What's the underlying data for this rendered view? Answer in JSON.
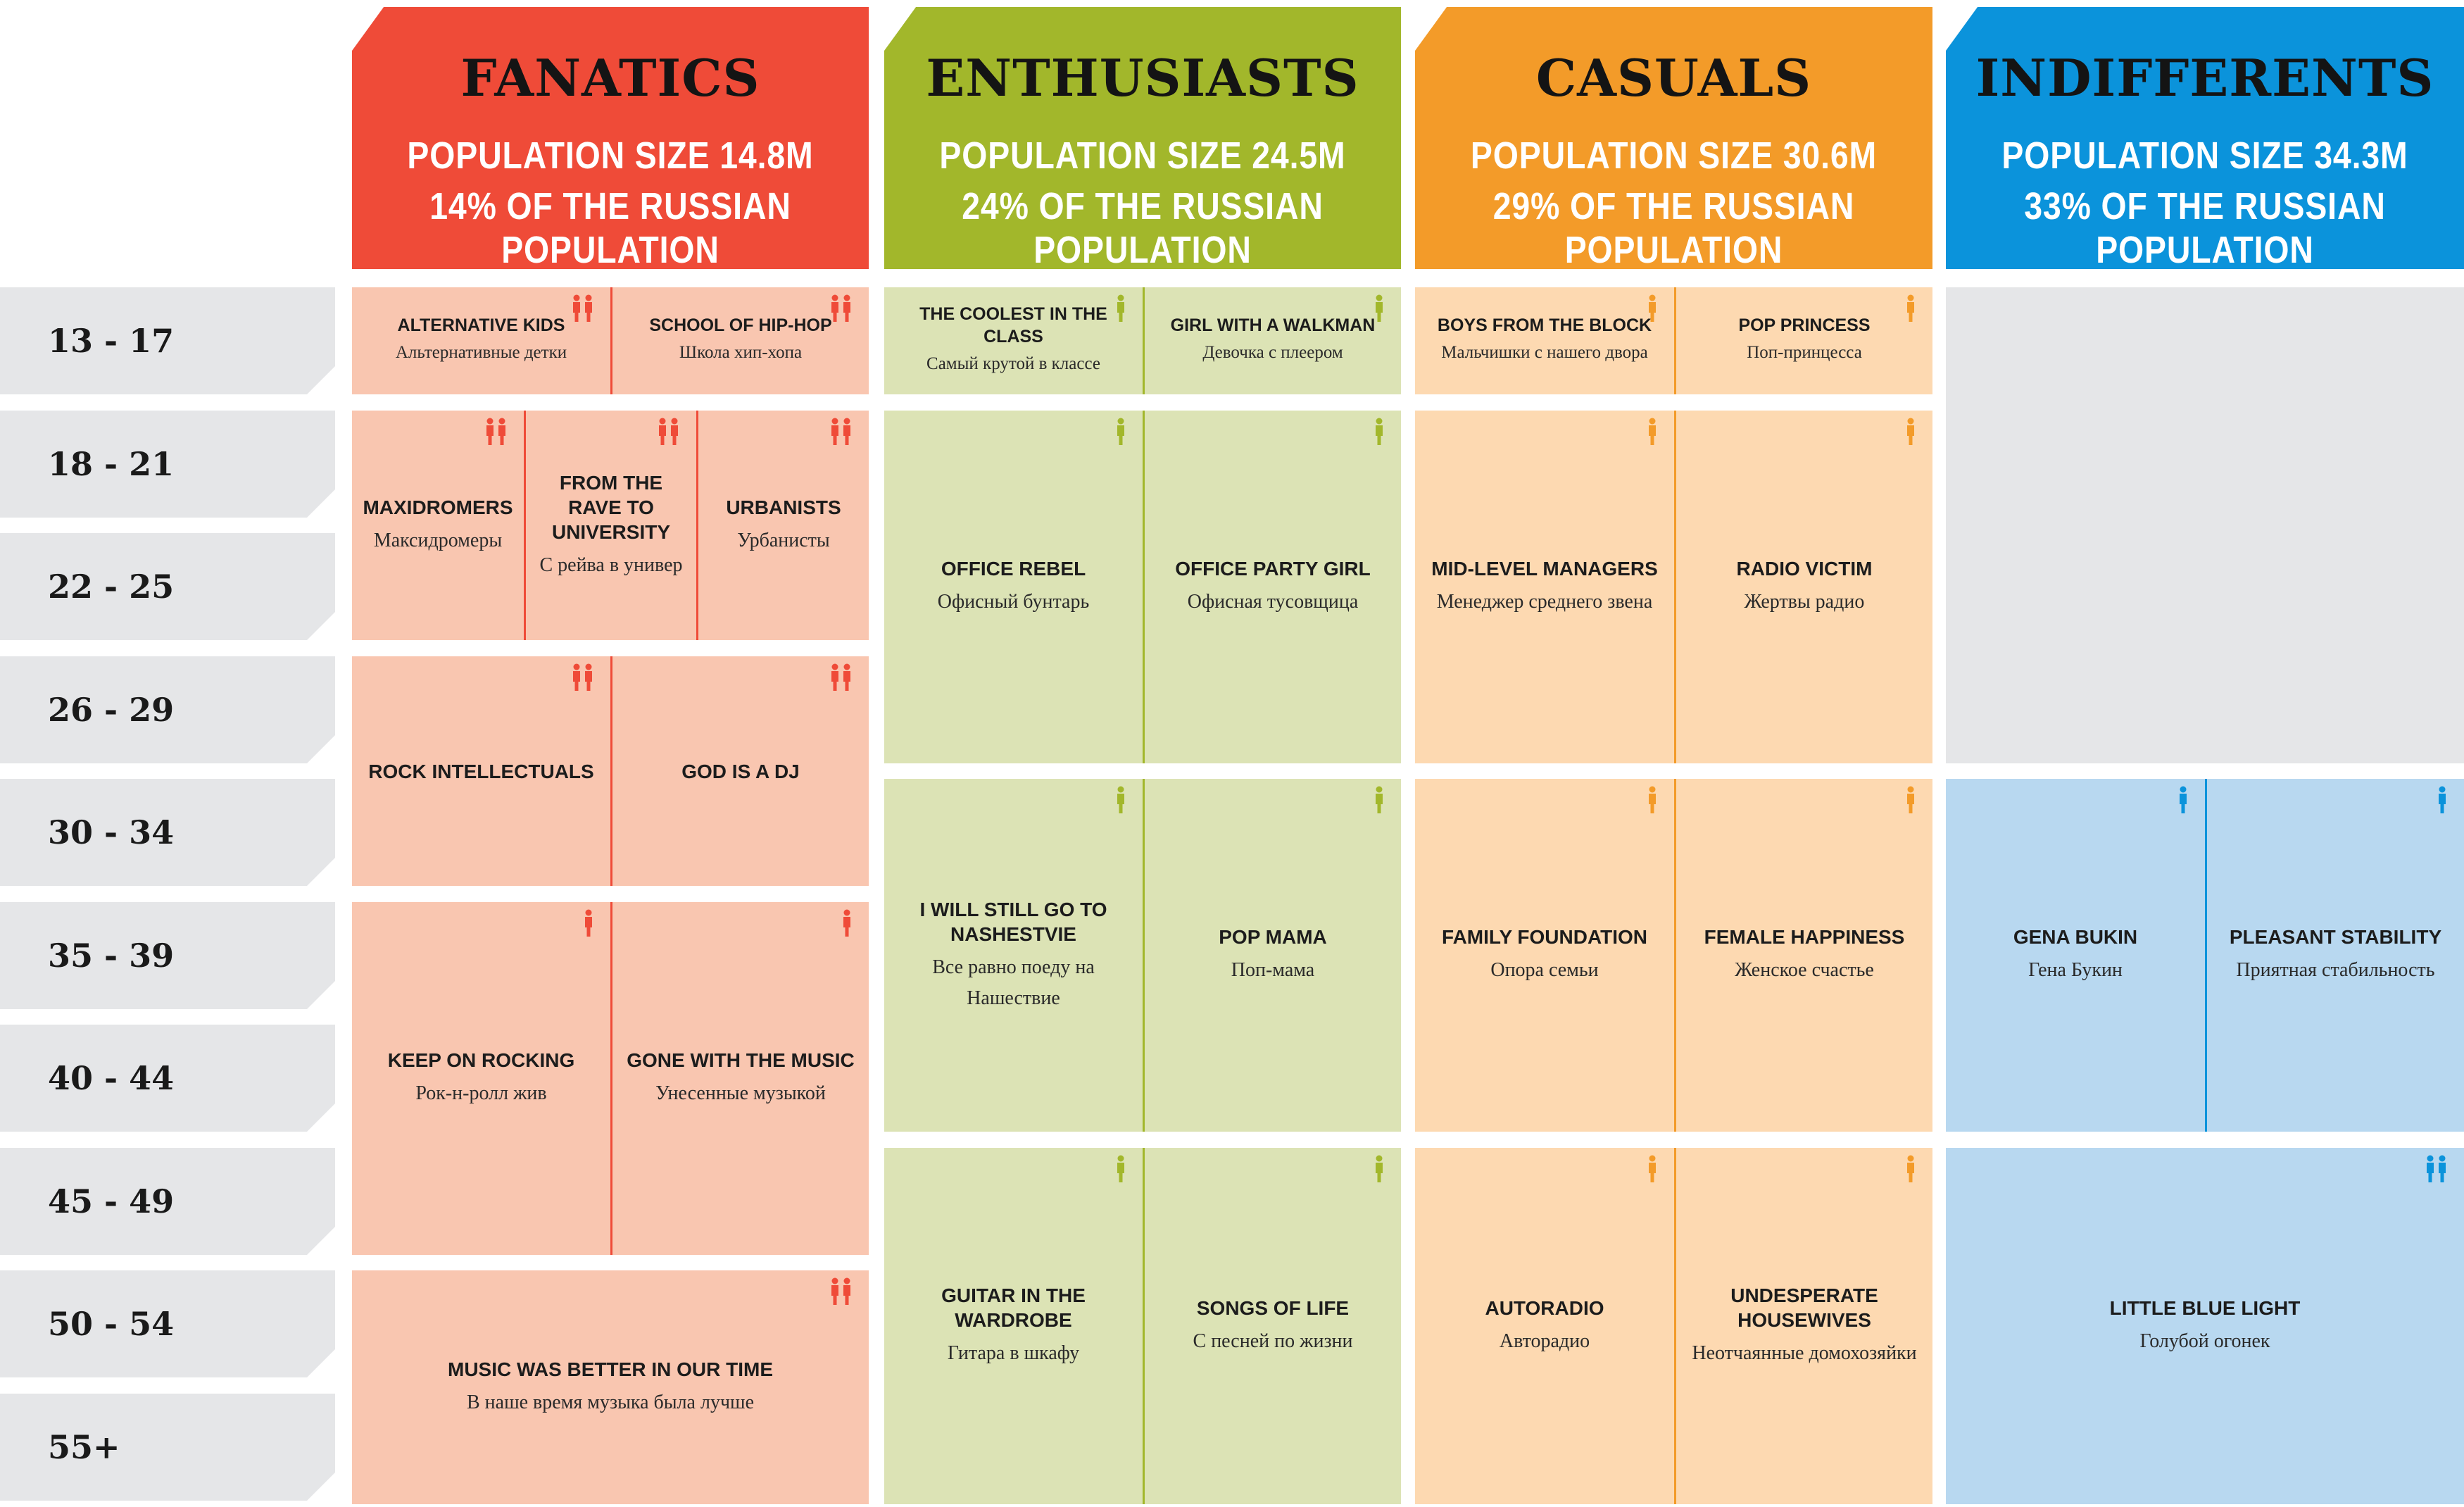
{
  "colors": {
    "fanatics": "#ef4b38",
    "enthusiasts": "#a2b72b",
    "casuals": "#f39b29",
    "indifferents": "#0b93db"
  },
  "segments": [
    {
      "key": "fanatics",
      "name": "FANATICS",
      "line1": "POPULATION SIZE 14.8M",
      "line2": "14% OF THE RUSSIAN POPULATION"
    },
    {
      "key": "enthusiasts",
      "name": "ENTHUSIASTS",
      "line1": "POPULATION SIZE 24.5M",
      "line2": "24% OF THE RUSSIAN POPULATION"
    },
    {
      "key": "casuals",
      "name": "CASUALS",
      "line1": "POPULATION SIZE 30.6M",
      "line2": "29% OF THE RUSSIAN POPULATION"
    },
    {
      "key": "indifferents",
      "name": "INDIFFERENTS",
      "line1": "POPULATION SIZE 34.3M",
      "line2": "33% OF THE RUSSIAN POPULATION"
    }
  ],
  "age_groups": [
    "13 - 17",
    "18 - 21",
    "22 - 25",
    "26 - 29",
    "30 - 34",
    "35 - 39",
    "40 - 44",
    "45 - 49",
    "50 - 54",
    "55+"
  ],
  "groups": [
    {
      "segment": "fanatics",
      "en": "ALTERNATIVE KIDS",
      "ru": "Альтернативные детки",
      "icon": "male-female-icon"
    },
    {
      "segment": "fanatics",
      "en": "SCHOOL OF HIP-HOP",
      "ru": "Школа хип-хопа",
      "icon": "male-female-icon"
    },
    {
      "segment": "fanatics",
      "en": "MAXIDROMERS",
      "ru": "Максидромеры",
      "icon": "male-female-icon"
    },
    {
      "segment": "fanatics",
      "en": "FROM THE RAVE TO UNIVERSITY",
      "ru": "С рейва в универ",
      "icon": "male-female-icon"
    },
    {
      "segment": "fanatics",
      "en": "URBANISTS",
      "ru": "Урбанисты",
      "icon": "male-female-icon"
    },
    {
      "segment": "fanatics",
      "en": "ROCK INTELLECTUALS",
      "ru": "",
      "icon": "male-female-icon"
    },
    {
      "segment": "fanatics",
      "en": "GOD IS A DJ",
      "ru": "",
      "icon": "male-female-icon"
    },
    {
      "segment": "fanatics",
      "en": "KEEP ON ROCKING",
      "ru": "Рок-н-ролл жив",
      "icon": "male-icon"
    },
    {
      "segment": "fanatics",
      "en": "GONE WITH THE MUSIC",
      "ru": "Унесенные музыкой",
      "icon": "female-icon"
    },
    {
      "segment": "fanatics",
      "en": "MUSIC WAS BETTER IN OUR TIME",
      "ru": "В  наше время музыка была лучше",
      "icon": "male-female-icon"
    },
    {
      "segment": "enthusiasts",
      "en": "THE COOLEST IN THE CLASS",
      "ru": "Самый крутой в классе",
      "icon": "male-icon"
    },
    {
      "segment": "enthusiasts",
      "en": "GIRL WITH A WALKMAN",
      "ru": "Девочка с плеером",
      "icon": "female-icon"
    },
    {
      "segment": "enthusiasts",
      "en": "OFFICE REBEL",
      "ru": "Офисный бунтарь",
      "icon": "male-icon"
    },
    {
      "segment": "enthusiasts",
      "en": "OFFICE PARTY GIRL",
      "ru": "Офисная тусовщица",
      "icon": "female-icon"
    },
    {
      "segment": "enthusiasts",
      "en": "I WILL STILL GO TO NASHESTVIE",
      "ru": "Все равно поеду на Нашествие",
      "icon": "male-icon"
    },
    {
      "segment": "enthusiasts",
      "en": "POP MAMA",
      "ru": "Поп-мама",
      "icon": "female-icon"
    },
    {
      "segment": "enthusiasts",
      "en": "GUITAR IN THE WARDROBE",
      "ru": "Гитара в шкафу",
      "icon": "male-icon"
    },
    {
      "segment": "enthusiasts",
      "en": "SONGS OF LIFE",
      "ru": "С песней по жизни",
      "icon": "female-icon"
    },
    {
      "segment": "casuals",
      "en": "BOYS FROM THE BLOCK",
      "ru": "Мальчишки с нашего двора",
      "icon": "male-icon"
    },
    {
      "segment": "casuals",
      "en": "POP PRINCESS",
      "ru": "Поп-принцесса",
      "icon": "female-icon"
    },
    {
      "segment": "casuals",
      "en": "MID-LEVEL MANAGERS",
      "ru": "Менеджер среднего звена",
      "icon": "male-icon"
    },
    {
      "segment": "casuals",
      "en": "RADIO VICTIM",
      "ru": "Жертвы радио",
      "icon": "female-icon"
    },
    {
      "segment": "casuals",
      "en": "FAMILY FOUNDATION",
      "ru": "Опора семьи",
      "icon": "male-icon"
    },
    {
      "segment": "casuals",
      "en": "FEMALE HAPPINESS",
      "ru": "Женское счастье",
      "icon": "female-icon"
    },
    {
      "segment": "casuals",
      "en": "AUTORADIO",
      "ru": "Авторадио",
      "icon": "male-icon"
    },
    {
      "segment": "casuals",
      "en": "UNDESPERATE HOUSEWIVES",
      "ru": "Неотчаянные домохозяйки",
      "icon": "female-icon"
    },
    {
      "segment": "indifferents",
      "en": "GENA BUKIN",
      "ru": "Гена Букин",
      "icon": "male-icon"
    },
    {
      "segment": "indifferents",
      "en": "PLEASANT STABILITY",
      "ru": "Приятная стабильность",
      "icon": "female-icon"
    },
    {
      "segment": "indifferents",
      "en": "LITTLE BLUE LIGHT",
      "ru": "Голубой огонек",
      "icon": "male-female-icon"
    }
  ]
}
